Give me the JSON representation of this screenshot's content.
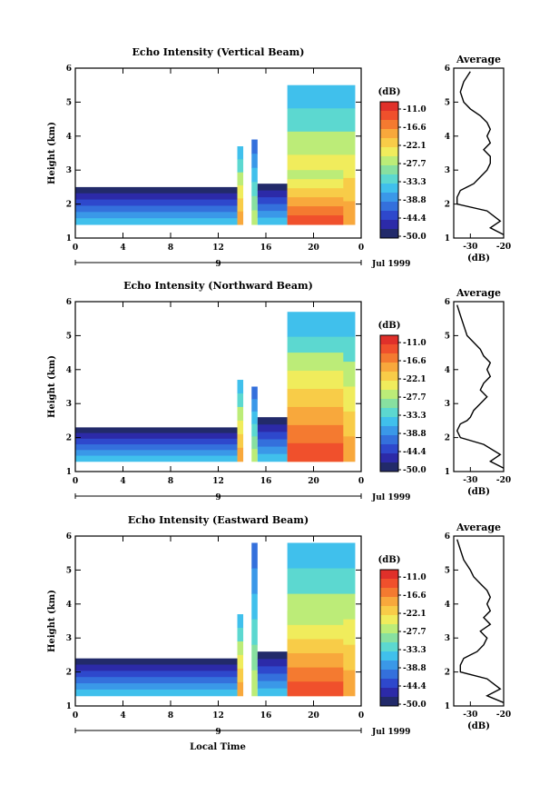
{
  "figure": {
    "xlabel": "Local Time",
    "date_label": "Jul 1999",
    "day_label": "9"
  },
  "colorbar": {
    "unit": "(dB)",
    "tick_labels": [
      "-11.0",
      "-16.6",
      "-22.1",
      "-27.7",
      "-33.3",
      "-38.8",
      "-44.4",
      "-50.0"
    ],
    "colors": [
      "#e0302a",
      "#f0502c",
      "#f47a30",
      "#f8a83c",
      "#f8cc48",
      "#f0ec5c",
      "#bcec78",
      "#88e0a0",
      "#5cd8d0",
      "#40c0ec",
      "#3a98e8",
      "#3470dc",
      "#2e48cc",
      "#2c2aa8",
      "#222a6a"
    ]
  },
  "chart_data": [
    {
      "type": "heatmap",
      "title": "Echo Intensity (Vertical Beam)",
      "ylabel": "Height (km)",
      "xlim": [
        0,
        24
      ],
      "ylim": [
        1,
        6
      ],
      "x_ticks": [
        "0",
        "4",
        "8",
        "12",
        "16",
        "20",
        "0"
      ],
      "y_ticks": [
        "1",
        "2",
        "3",
        "4",
        "5",
        "6"
      ],
      "zlim": [
        -50.0,
        -11.0
      ],
      "z_unit": "dB",
      "features": [
        {
          "x": [
            0,
            13.6
          ],
          "y": [
            1.4,
            2.5
          ],
          "dB": -35
        },
        {
          "x": [
            13.6,
            14.1
          ],
          "y": [
            1.4,
            3.7
          ],
          "dB": -20
        },
        {
          "x": [
            14.8,
            15.3
          ],
          "y": [
            1.4,
            3.9
          ],
          "dB": -28
        },
        {
          "x": [
            15.3,
            17.8
          ],
          "y": [
            1.4,
            2.6
          ],
          "dB": -35
        },
        {
          "x": [
            17.8,
            23.5
          ],
          "y": [
            1.4,
            5.5
          ],
          "dB": -20
        },
        {
          "x": [
            17.8,
            22.5
          ],
          "y": [
            1.4,
            3.0
          ],
          "dB": -13
        }
      ]
    },
    {
      "type": "line",
      "title": "Average",
      "xlabel": "(dB)",
      "xlim": [
        -35,
        -20
      ],
      "ylim": [
        1,
        6
      ],
      "x_ticks": [
        "-30",
        "-20"
      ],
      "y_ticks": [
        "1",
        "2",
        "3",
        "4",
        "5",
        "6"
      ],
      "x": [
        -30,
        -32,
        -33,
        -32,
        -30,
        -27,
        -25,
        -24,
        -25,
        -24,
        -26,
        -24,
        -24,
        -25,
        -27,
        -29,
        -31,
        -33,
        -34,
        -34,
        -25,
        -21,
        -24,
        -20
      ],
      "y": [
        5.9,
        5.6,
        5.3,
        5.0,
        4.8,
        4.6,
        4.4,
        4.2,
        4.0,
        3.8,
        3.6,
        3.4,
        3.2,
        3.0,
        2.8,
        2.6,
        2.5,
        2.4,
        2.2,
        2.0,
        1.8,
        1.5,
        1.3,
        1.1
      ]
    },
    {
      "type": "heatmap",
      "title": "Echo Intensity (Northward Beam)",
      "ylabel": "Height (km)",
      "xlim": [
        0,
        24
      ],
      "ylim": [
        1,
        6
      ],
      "x_ticks": [
        "0",
        "4",
        "8",
        "12",
        "16",
        "20",
        "0"
      ],
      "y_ticks": [
        "1",
        "2",
        "3",
        "4",
        "5",
        "6"
      ],
      "zlim": [
        -50.0,
        -11.0
      ],
      "z_unit": "dB",
      "features": [
        {
          "x": [
            0,
            13.6
          ],
          "y": [
            1.3,
            2.3
          ],
          "dB": -35
        },
        {
          "x": [
            13.6,
            14.1
          ],
          "y": [
            1.3,
            3.7
          ],
          "dB": -20
        },
        {
          "x": [
            14.8,
            15.3
          ],
          "y": [
            1.3,
            3.5
          ],
          "dB": -28
        },
        {
          "x": [
            15.3,
            17.8
          ],
          "y": [
            1.3,
            2.6
          ],
          "dB": -35
        },
        {
          "x": [
            17.8,
            23.5
          ],
          "y": [
            1.3,
            5.7
          ],
          "dB": -20
        },
        {
          "x": [
            17.8,
            22.5
          ],
          "y": [
            1.3,
            4.5
          ],
          "dB": -13
        }
      ]
    },
    {
      "type": "line",
      "title": "Average",
      "xlabel": "(dB)",
      "xlim": [
        -35,
        -20
      ],
      "ylim": [
        1,
        6
      ],
      "x_ticks": [
        "-30",
        "-20"
      ],
      "y_ticks": [
        "1",
        "2",
        "3",
        "4",
        "5",
        "6"
      ],
      "x": [
        -34,
        -33,
        -32,
        -31,
        -29,
        -27,
        -26,
        -24,
        -25,
        -24,
        -26,
        -27,
        -25,
        -27,
        -29,
        -30,
        -31,
        -33,
        -34,
        -33,
        -26,
        -21,
        -24,
        -20
      ],
      "y": [
        5.9,
        5.6,
        5.3,
        5.0,
        4.8,
        4.6,
        4.4,
        4.2,
        4.0,
        3.8,
        3.6,
        3.4,
        3.2,
        3.0,
        2.8,
        2.6,
        2.5,
        2.4,
        2.2,
        2.0,
        1.8,
        1.5,
        1.3,
        1.1
      ]
    },
    {
      "type": "heatmap",
      "title": "Echo Intensity (Eastward Beam)",
      "ylabel": "Height (km)",
      "xlim": [
        0,
        24
      ],
      "ylim": [
        1,
        6
      ],
      "x_ticks": [
        "0",
        "4",
        "8",
        "12",
        "16",
        "20",
        "0"
      ],
      "y_ticks": [
        "1",
        "2",
        "3",
        "4",
        "5",
        "6"
      ],
      "zlim": [
        -50.0,
        -11.0
      ],
      "z_unit": "dB",
      "features": [
        {
          "x": [
            0,
            13.6
          ],
          "y": [
            1.3,
            2.4
          ],
          "dB": -35
        },
        {
          "x": [
            13.6,
            14.1
          ],
          "y": [
            1.3,
            3.7
          ],
          "dB": -20
        },
        {
          "x": [
            14.8,
            15.3
          ],
          "y": [
            1.3,
            5.8
          ],
          "dB": -28
        },
        {
          "x": [
            15.3,
            17.8
          ],
          "y": [
            1.3,
            2.6
          ],
          "dB": -35
        },
        {
          "x": [
            17.8,
            23.5
          ],
          "y": [
            1.3,
            5.8
          ],
          "dB": -20
        },
        {
          "x": [
            17.8,
            22.5
          ],
          "y": [
            1.3,
            3.8
          ],
          "dB": -13
        }
      ]
    },
    {
      "type": "line",
      "title": "Average",
      "xlabel": "(dB)",
      "xlim": [
        -35,
        -20
      ],
      "ylim": [
        1,
        6
      ],
      "x_ticks": [
        "-30",
        "-20"
      ],
      "y_ticks": [
        "1",
        "2",
        "3",
        "4",
        "5",
        "6"
      ],
      "x": [
        -34,
        -33,
        -32,
        -30,
        -29,
        -27,
        -25,
        -24,
        -25,
        -24,
        -26,
        -24,
        -27,
        -25,
        -26,
        -28,
        -30,
        -32,
        -33,
        -33,
        -25,
        -21,
        -25,
        -20
      ],
      "y": [
        5.9,
        5.6,
        5.3,
        5.0,
        4.8,
        4.6,
        4.4,
        4.2,
        4.0,
        3.8,
        3.6,
        3.4,
        3.2,
        3.0,
        2.8,
        2.6,
        2.5,
        2.4,
        2.2,
        2.0,
        1.8,
        1.5,
        1.3,
        1.1
      ]
    }
  ]
}
